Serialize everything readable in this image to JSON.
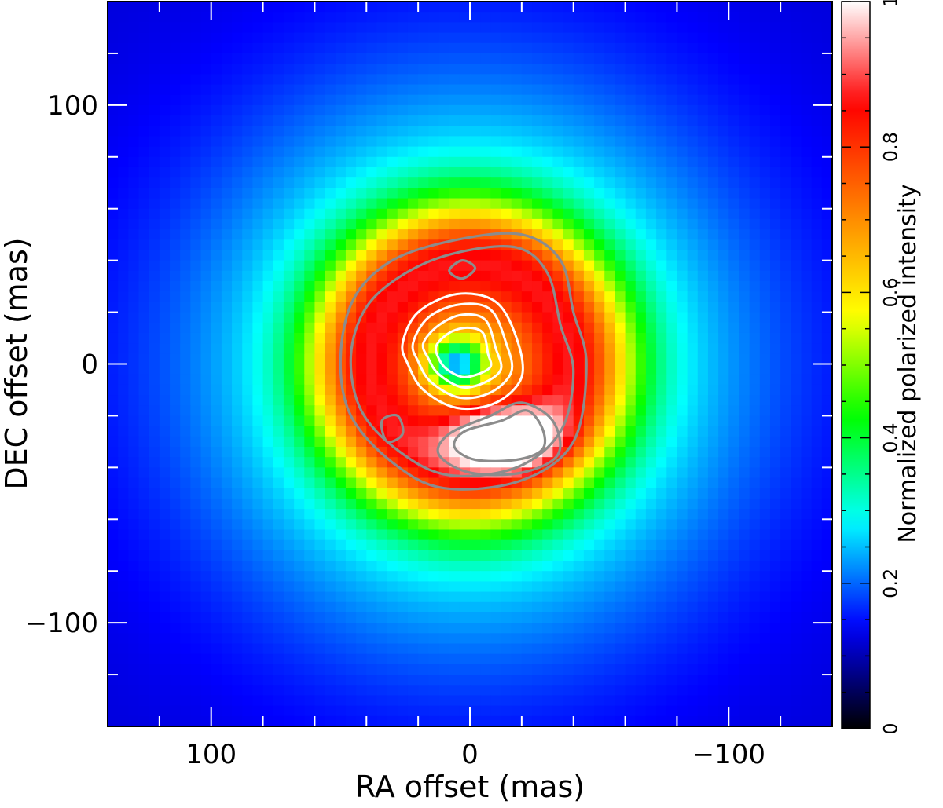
{
  "chart_data": {
    "type": "heatmap",
    "title": "",
    "xlabel": "RA offset (mas)",
    "ylabel": "DEC offset (mas)",
    "xlim": [
      140,
      -140
    ],
    "ylim": [
      -140,
      140
    ],
    "x_reversed": true,
    "x_ticks": [
      100,
      0,
      -100
    ],
    "x_tick_labels": [
      "100",
      "0",
      "−100"
    ],
    "y_ticks": [
      100,
      0,
      -100
    ],
    "y_tick_labels": [
      "100",
      "0",
      "−100"
    ],
    "colorbar": {
      "label": "Normalized polarized intensity",
      "range": [
        0,
        1
      ],
      "ticks": [
        0,
        0.2,
        0.4,
        0.6,
        0.8,
        1
      ],
      "tick_labels": [
        "0",
        "0.2",
        "0.4",
        "0.6",
        "0.8",
        "1"
      ],
      "colormap": [
        "#000000",
        "#0000ff",
        "#00ffff",
        "#00ff00",
        "#ffff00",
        "#ff8000",
        "#ff0000",
        "#ffffff"
      ]
    },
    "image": {
      "description_values": {
        "peak_intensity": 1,
        "peak_ra_offset": -12,
        "peak_dec_offset": -28,
        "ring_radius": 42,
        "inner_minimum_ra": 5,
        "inner_minimum_dec": 0
      }
    },
    "contours": {
      "white": [
        [
          [
            26,
            8
          ],
          [
            20,
            20
          ],
          [
            5,
            27
          ],
          [
            -10,
            24
          ],
          [
            -18,
            10
          ],
          [
            -20,
            -5
          ],
          [
            -10,
            -15
          ],
          [
            5,
            -17
          ],
          [
            18,
            -10
          ],
          [
            24,
            0
          ]
        ],
        [
          [
            22,
            8
          ],
          [
            16,
            18
          ],
          [
            4,
            23
          ],
          [
            -8,
            21
          ],
          [
            -14,
            8
          ],
          [
            -16,
            -3
          ],
          [
            -8,
            -11
          ],
          [
            4,
            -13
          ],
          [
            15,
            -7
          ],
          [
            20,
            1
          ]
        ],
        [
          [
            18,
            8
          ],
          [
            12,
            15
          ],
          [
            3,
            19
          ],
          [
            -6,
            17
          ],
          [
            -10,
            6
          ],
          [
            -12,
            -2
          ],
          [
            -6,
            -7
          ],
          [
            3,
            -9
          ],
          [
            12,
            -4
          ],
          [
            16,
            2
          ]
        ],
        [
          [
            13,
            7
          ],
          [
            8,
            12
          ],
          [
            1,
            14
          ],
          [
            -5,
            12
          ],
          [
            -7,
            4
          ],
          [
            -8,
            -1
          ],
          [
            -3,
            -4
          ],
          [
            3,
            -5
          ],
          [
            9,
            -2
          ],
          [
            12,
            2
          ]
        ]
      ],
      "grey": [
        [
          [
            50,
            2
          ],
          [
            45,
            25
          ],
          [
            30,
            40
          ],
          [
            5,
            48
          ],
          [
            -20,
            50
          ],
          [
            -35,
            40
          ],
          [
            -40,
            20
          ],
          [
            -45,
            0
          ],
          [
            -40,
            -30
          ],
          [
            -20,
            -45
          ],
          [
            10,
            -48
          ],
          [
            30,
            -38
          ],
          [
            46,
            -20
          ]
        ],
        [
          [
            46,
            3
          ],
          [
            40,
            22
          ],
          [
            25,
            35
          ],
          [
            5,
            43
          ],
          [
            -18,
            45
          ],
          [
            -30,
            35
          ],
          [
            -35,
            15
          ],
          [
            -40,
            -3
          ],
          [
            -35,
            -26
          ],
          [
            -18,
            -40
          ],
          [
            8,
            -43
          ],
          [
            27,
            -34
          ],
          [
            42,
            -18
          ]
        ],
        [
          [
            -8,
            -20
          ],
          [
            -20,
            -15
          ],
          [
            -32,
            -22
          ],
          [
            -34,
            -35
          ],
          [
            -20,
            -42
          ],
          [
            0,
            -42
          ],
          [
            12,
            -35
          ],
          [
            8,
            -27
          ]
        ],
        [
          [
            -12,
            -22
          ],
          [
            -22,
            -18
          ],
          [
            -28,
            -25
          ],
          [
            -28,
            -33
          ],
          [
            -18,
            -37
          ],
          [
            -2,
            -37
          ],
          [
            6,
            -32
          ],
          [
            2,
            -26
          ]
        ],
        [
          [
            34,
            -22
          ],
          [
            28,
            -20
          ],
          [
            26,
            -27
          ],
          [
            32,
            -30
          ]
        ],
        [
          [
            8,
            36
          ],
          [
            3,
            40
          ],
          [
            -2,
            37
          ],
          [
            3,
            33
          ]
        ]
      ]
    }
  }
}
